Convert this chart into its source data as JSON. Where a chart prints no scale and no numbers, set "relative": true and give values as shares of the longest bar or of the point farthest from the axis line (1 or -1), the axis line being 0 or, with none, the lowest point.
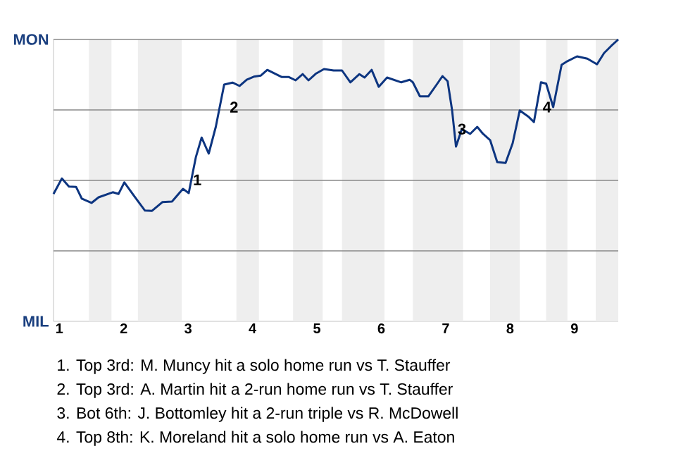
{
  "chart_data": {
    "type": "line",
    "x": [
      0.91,
      1.04,
      1.15,
      1.26,
      1.35,
      1.5,
      1.61,
      1.83,
      1.92,
      2.01,
      2.16,
      2.33,
      2.44,
      2.6,
      2.75,
      2.92,
      3.01,
      3.05,
      3.12,
      3.21,
      3.32,
      3.43,
      3.56,
      3.69,
      3.8,
      3.91,
      4.02,
      4.13,
      4.23,
      4.45,
      4.56,
      4.67,
      4.78,
      4.87,
      4.98,
      5.11,
      5.26,
      5.39,
      5.52,
      5.66,
      5.74,
      5.85,
      5.96,
      6.09,
      6.31,
      6.44,
      6.49,
      6.6,
      6.73,
      6.86,
      6.95,
      7.03,
      7.1,
      7.16,
      7.25,
      7.38,
      7.49,
      7.58,
      7.69,
      7.8,
      7.93,
      8.04,
      8.15,
      8.28,
      8.37,
      8.48,
      8.56,
      8.67,
      8.8,
      8.89,
      9.04,
      9.2,
      9.35,
      9.46,
      9.57,
      9.68
    ],
    "series": [
      {
        "color": "#0d3580",
        "values": [
          0.452,
          0.507,
          0.478,
          0.477,
          0.435,
          0.42,
          0.44,
          0.458,
          0.452,
          0.493,
          0.445,
          0.393,
          0.392,
          0.423,
          0.425,
          0.47,
          0.455,
          0.502,
          0.582,
          0.652,
          0.595,
          0.69,
          0.84,
          0.847,
          0.835,
          0.857,
          0.868,
          0.872,
          0.892,
          0.867,
          0.867,
          0.855,
          0.877,
          0.855,
          0.878,
          0.895,
          0.89,
          0.89,
          0.848,
          0.877,
          0.865,
          0.892,
          0.832,
          0.865,
          0.848,
          0.857,
          0.848,
          0.798,
          0.798,
          0.84,
          0.87,
          0.852,
          0.748,
          0.62,
          0.682,
          0.665,
          0.69,
          0.665,
          0.643,
          0.565,
          0.562,
          0.632,
          0.748,
          0.727,
          0.707,
          0.848,
          0.843,
          0.76,
          0.91,
          0.923,
          0.94,
          0.932,
          0.912,
          0.952,
          0.977,
          1
        ]
      }
    ],
    "relative": true,
    "xlim": [
      0.91,
      9.68
    ],
    "xticks": [
      1,
      2,
      3,
      4,
      5,
      6,
      7,
      8,
      9
    ],
    "ref_lines": [
      {
        "axis": "y",
        "value": 0.25,
        "color": "#888888"
      },
      {
        "axis": "y",
        "value": 0.5,
        "color": "#888888"
      },
      {
        "axis": "y",
        "value": 0.75,
        "color": "#888888"
      },
      {
        "axis": "y",
        "value": 1,
        "color": "#888888"
      }
    ],
    "bands": [
      {
        "axis": "x",
        "from": 1.46,
        "to": 1.81,
        "color": "#eeeeee"
      },
      {
        "axis": "x",
        "from": 2.22,
        "to": 2.9,
        "color": "#eeeeee"
      },
      {
        "axis": "x",
        "from": 3.75,
        "to": 4.1,
        "color": "#eeeeee"
      },
      {
        "axis": "x",
        "from": 4.63,
        "to": 5.09,
        "color": "#eeeeee"
      },
      {
        "axis": "x",
        "from": 5.39,
        "to": 6.05,
        "color": "#eeeeee"
      },
      {
        "axis": "x",
        "from": 6.49,
        "to": 7.27,
        "color": "#eeeeee"
      },
      {
        "axis": "x",
        "from": 7.69,
        "to": 8.15,
        "color": "#eeeeee"
      },
      {
        "axis": "x",
        "from": 8.56,
        "to": 8.89,
        "color": "#eeeeee"
      },
      {
        "axis": "x",
        "from": 9.33,
        "to": 9.68,
        "color": "#eeeeee"
      }
    ],
    "annotations": [
      "MON",
      "MIL",
      {
        "text": "1",
        "x": 3.05,
        "y": 0.502
      },
      {
        "text": "2",
        "x": 3.62,
        "y": 0.76
      },
      {
        "text": "3",
        "x": 7.16,
        "y": 0.682
      },
      {
        "text": "4",
        "x": 8.48,
        "y": 0.76
      },
      "1. Top 3rd: M. Muncy hit a solo home run vs T. Stauffer",
      "2. Top 3rd: A. Martin hit a 2-run home run vs T. Stauffer",
      "3. Bot 6th: J. Bottomley hit a 2-run triple vs R. McDowell",
      "4. Top 8th: K. Moreland hit a solo home run vs A. Eaton"
    ]
  }
}
